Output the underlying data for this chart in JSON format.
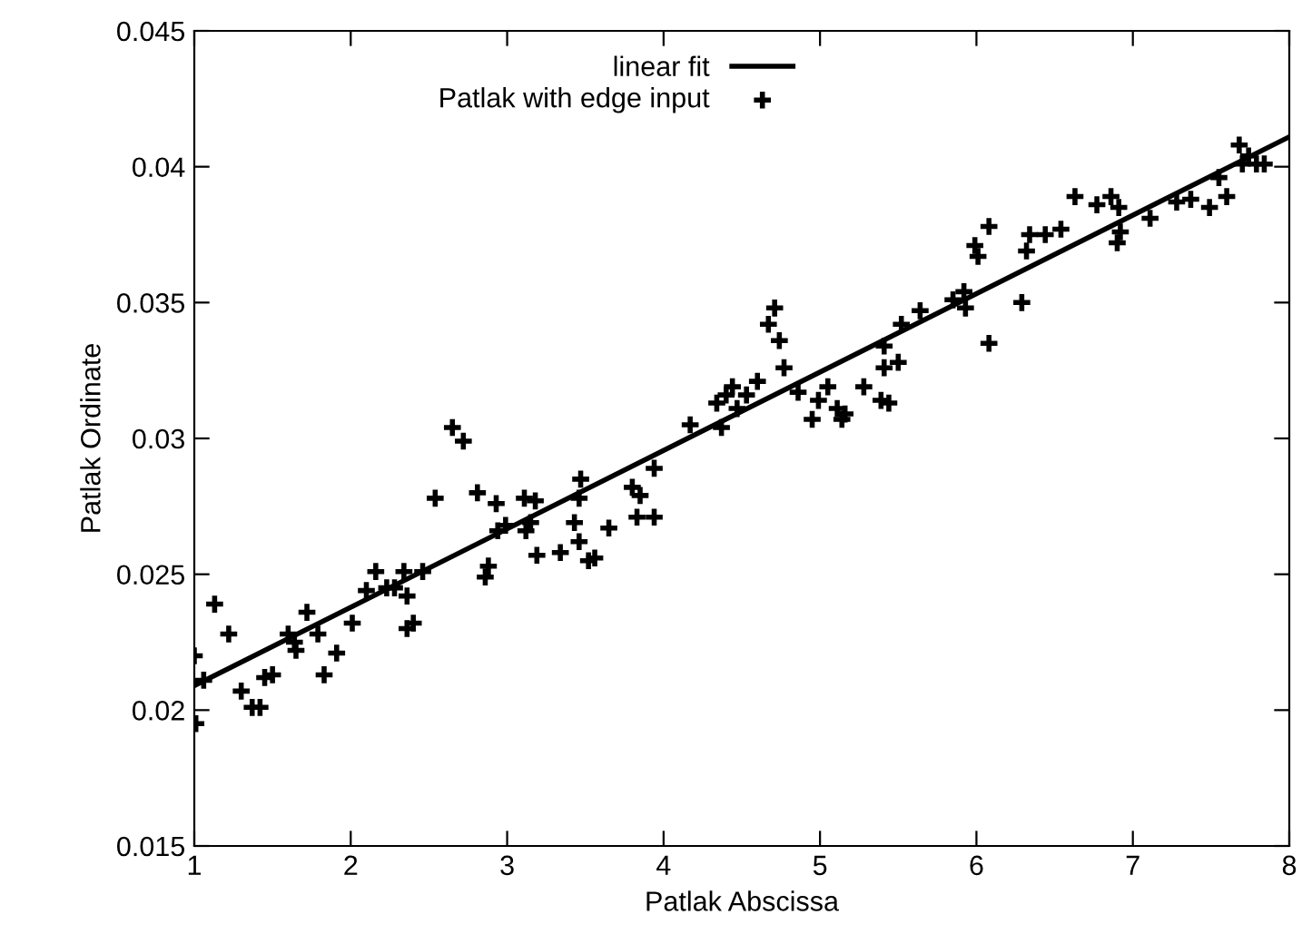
{
  "chart_data": {
    "type": "scatter",
    "xlabel": "Patlak Abscissa",
    "ylabel": "Patlak Ordinate",
    "xlim": [
      1,
      8
    ],
    "ylim": [
      0.015,
      0.045
    ],
    "xticks": [
      1,
      2,
      3,
      4,
      5,
      6,
      7,
      8
    ],
    "yticks": [
      0.015,
      0.02,
      0.025,
      0.03,
      0.035,
      0.04,
      0.045
    ],
    "grid": false,
    "legend": "top left",
    "marker": "cross",
    "series": [
      {
        "name": "linear fit",
        "type": "line",
        "color": "#000000",
        "line_style": "solid",
        "marker": "none",
        "x": [
          1,
          8
        ],
        "values": [
          0.0209,
          0.0411
        ]
      },
      {
        "name": "Patlak with edge input",
        "color": "#000000",
        "x": [
          1.0,
          1.01,
          1.06,
          1.13,
          1.22,
          1.3,
          1.37,
          1.42,
          1.45,
          1.5,
          1.6,
          1.64,
          1.65,
          1.72,
          1.79,
          1.83,
          1.91,
          2.01,
          2.1,
          2.16,
          2.23,
          2.28,
          2.34,
          2.36,
          2.36,
          2.4,
          2.46,
          2.54,
          2.65,
          2.72,
          2.81,
          2.86,
          2.88,
          2.93,
          2.94,
          2.99,
          3.11,
          3.12,
          3.18,
          3.19,
          3.15,
          3.34,
          3.43,
          3.47,
          3.46,
          3.46,
          3.52,
          3.56,
          3.65,
          3.8,
          3.85,
          3.83,
          3.94,
          3.94,
          4.17,
          4.34,
          4.37,
          4.4,
          4.44,
          4.47,
          4.53,
          4.6,
          4.67,
          4.71,
          4.74,
          4.77,
          4.86,
          4.95,
          4.99,
          5.05,
          5.11,
          5.14,
          5.16,
          5.28,
          5.39,
          5.44,
          5.41,
          5.41,
          5.5,
          5.52,
          5.64,
          5.85,
          5.92,
          5.93,
          5.99,
          6.01,
          6.08,
          6.08,
          6.29,
          6.32,
          6.34,
          6.44,
          6.54,
          6.63,
          6.77,
          6.86,
          6.91,
          6.9,
          6.92,
          7.11,
          7.28,
          7.37,
          7.49,
          7.55,
          7.6,
          7.68,
          7.7,
          7.74,
          7.79,
          7.84
        ],
        "values": [
          0.022,
          0.0195,
          0.0211,
          0.0239,
          0.0228,
          0.0207,
          0.0201,
          0.0201,
          0.0212,
          0.0213,
          0.0228,
          0.0225,
          0.0222,
          0.0236,
          0.0228,
          0.0213,
          0.0221,
          0.0232,
          0.0244,
          0.0251,
          0.0245,
          0.0245,
          0.0251,
          0.0242,
          0.023,
          0.0232,
          0.0251,
          0.0278,
          0.0304,
          0.0299,
          0.028,
          0.0249,
          0.0253,
          0.0276,
          0.0266,
          0.0268,
          0.0278,
          0.0266,
          0.0277,
          0.0257,
          0.0269,
          0.0258,
          0.0269,
          0.0285,
          0.0278,
          0.0262,
          0.0255,
          0.0256,
          0.0267,
          0.0282,
          0.0279,
          0.0271,
          0.0271,
          0.0289,
          0.0305,
          0.0313,
          0.0304,
          0.0316,
          0.0319,
          0.0311,
          0.0316,
          0.0321,
          0.0342,
          0.0348,
          0.0336,
          0.0326,
          0.0317,
          0.0307,
          0.0314,
          0.0319,
          0.0311,
          0.0307,
          0.0309,
          0.0319,
          0.0314,
          0.0313,
          0.0334,
          0.0326,
          0.0328,
          0.0342,
          0.0347,
          0.0351,
          0.0354,
          0.0348,
          0.0371,
          0.0367,
          0.0378,
          0.0335,
          0.035,
          0.0369,
          0.0375,
          0.0375,
          0.0377,
          0.0389,
          0.0386,
          0.0389,
          0.0385,
          0.0372,
          0.0376,
          0.0381,
          0.0387,
          0.0388,
          0.0385,
          0.0396,
          0.0389,
          0.0408,
          0.0401,
          0.0404,
          0.0401,
          0.0401
        ]
      }
    ]
  }
}
